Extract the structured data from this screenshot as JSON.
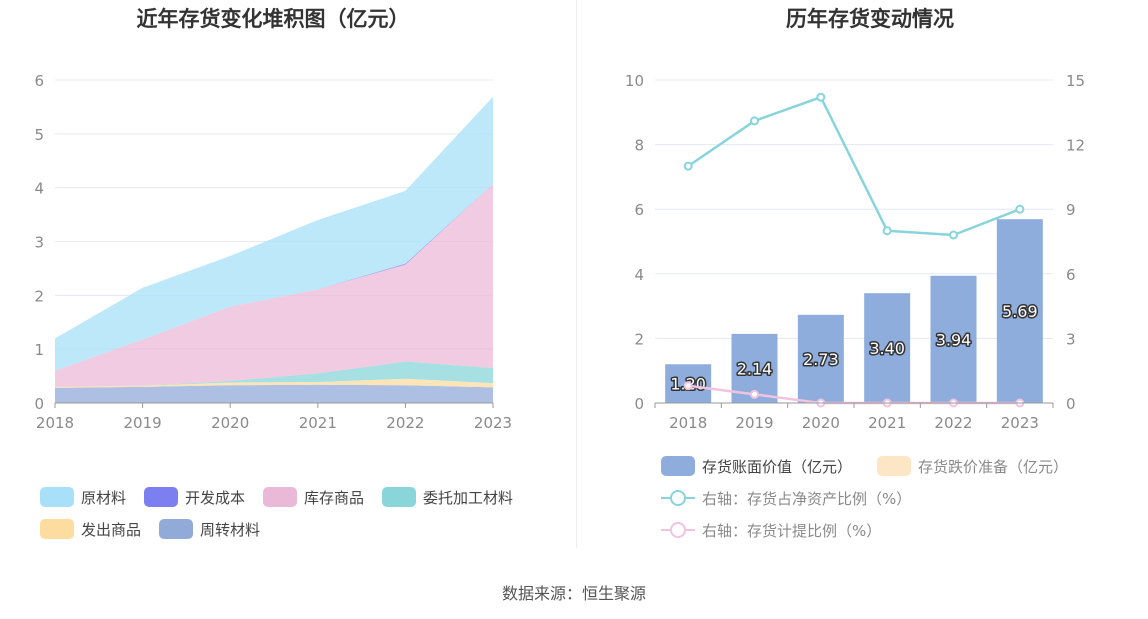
{
  "source_text": "数据来源：恒生聚源",
  "colors": {
    "raw_material": "#a7e0f8",
    "dev_cost": "#7b7ff0",
    "stock_goods": "#ebb9d8",
    "outsourced": "#89d5da",
    "shipped_goods": "#fddca0",
    "turnover": "#92aad8",
    "bar_book": "#8eaddc",
    "bar_reserve": "#fce6c6",
    "line_ratio_asset": "#88d4dc",
    "line_ratio_provision": "#f0c3df"
  },
  "chart_data": [
    {
      "type": "area",
      "stacked": true,
      "title": "近年存货变化堆积图（亿元）",
      "x": [
        "2018",
        "2019",
        "2020",
        "2021",
        "2022",
        "2023"
      ],
      "ylim": [
        0,
        6
      ],
      "yticks": [
        "0",
        "1",
        "2",
        "3",
        "4",
        "5",
        "6"
      ],
      "grid": true,
      "legend_position": "bottom",
      "series": [
        {
          "name": "周转材料",
          "key": "turnover",
          "values": [
            0.28,
            0.3,
            0.33,
            0.34,
            0.33,
            0.29
          ]
        },
        {
          "name": "发出商品",
          "key": "shipped_goods",
          "values": [
            0.02,
            0.02,
            0.05,
            0.05,
            0.12,
            0.08
          ]
        },
        {
          "name": "委托加工材料",
          "key": "outsourced",
          "values": [
            0.0,
            0.0,
            0.03,
            0.16,
            0.32,
            0.28
          ]
        },
        {
          "name": "库存商品",
          "key": "stock_goods",
          "values": [
            0.3,
            0.86,
            1.38,
            1.56,
            1.8,
            3.42
          ]
        },
        {
          "name": "开发成本",
          "key": "dev_cost",
          "values": [
            0.0,
            0.0,
            0.0,
            0.0,
            0.02,
            0.0
          ]
        },
        {
          "name": "原材料",
          "key": "raw_material",
          "values": [
            0.6,
            0.96,
            0.94,
            1.29,
            1.35,
            1.62
          ]
        }
      ],
      "legend_order": [
        "原材料",
        "开发成本",
        "库存商品",
        "委托加工材料",
        "发出商品",
        "周转材料"
      ]
    },
    {
      "type": "bar",
      "title": "历年存货变动情况",
      "categories": [
        "2018",
        "2019",
        "2020",
        "2021",
        "2022",
        "2023"
      ],
      "ylim_left": [
        0,
        10
      ],
      "yticks_left": [
        "0",
        "2",
        "4",
        "6",
        "8",
        "10"
      ],
      "ylim_right": [
        0,
        15
      ],
      "yticks_right": [
        "0",
        "3",
        "6",
        "9",
        "12",
        "15"
      ],
      "grid": true,
      "legend_position": "bottom",
      "series": [
        {
          "name": "存货账面价值（亿元）",
          "key": "bar_book",
          "kind": "bar",
          "axis": "left",
          "values": [
            1.2,
            2.14,
            2.73,
            3.4,
            3.94,
            5.69
          ],
          "labels": [
            "1.20",
            "2.14",
            "2.73",
            "3.40",
            "3.94",
            "5.69"
          ]
        },
        {
          "name": "存货跌价准备（亿元）",
          "key": "bar_reserve",
          "kind": "bar",
          "axis": "left",
          "values": [
            0,
            0,
            0,
            0,
            0,
            0
          ]
        },
        {
          "name": "右轴：存货占净资产比例（%）",
          "key": "line_ratio_asset",
          "kind": "line",
          "axis": "right",
          "values": [
            11.0,
            13.1,
            14.2,
            8.0,
            7.8,
            9.0
          ]
        },
        {
          "name": "右轴：存货计提比例（%）",
          "key": "line_ratio_provision",
          "kind": "line",
          "axis": "right",
          "values": [
            0.8,
            0.4,
            0.0,
            0.0,
            0.0,
            0.0
          ]
        }
      ]
    }
  ]
}
